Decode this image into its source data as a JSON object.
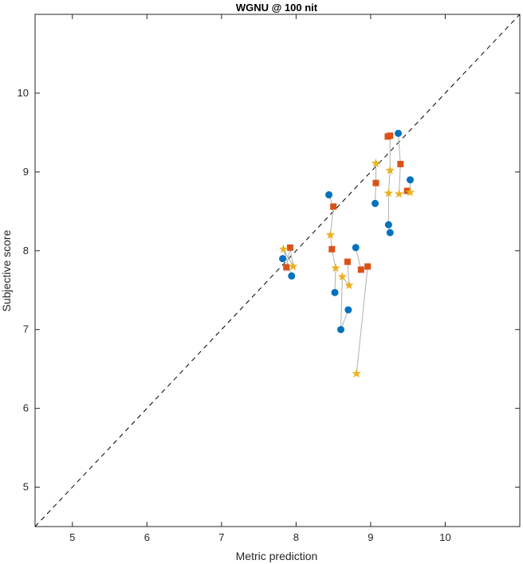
{
  "chart_data": {
    "type": "scatter",
    "title": "WGNU @ 100 nit",
    "xlabel": "Metric prediction",
    "ylabel": "Subjective score",
    "xlim": [
      4.5,
      11
    ],
    "ylim": [
      4.5,
      11
    ],
    "xticks": [
      5,
      6,
      7,
      8,
      9,
      10
    ],
    "yticks": [
      5,
      6,
      7,
      8,
      9,
      10
    ],
    "grid": false,
    "box": true,
    "reference_line": {
      "style": "dashed",
      "color": "#000000",
      "from": [
        4.5,
        4.5
      ],
      "to": [
        11,
        11
      ]
    },
    "marker_series": [
      {
        "marker": "circle",
        "color": "#0072BD"
      },
      {
        "marker": "square",
        "color": "#D95319"
      },
      {
        "marker": "star",
        "color": "#EDB120"
      }
    ],
    "connector_color": "#B0B0B0",
    "groups": [
      [
        [
          7.82,
          7.9,
          0
        ],
        [
          7.87,
          7.79,
          1
        ],
        [
          7.92,
          8.04,
          1
        ],
        [
          7.96,
          7.8,
          2
        ],
        [
          7.83,
          8.02,
          2
        ],
        [
          7.94,
          7.68,
          0
        ]
      ],
      [
        [
          8.44,
          8.71,
          0
        ],
        [
          8.5,
          8.56,
          1
        ],
        [
          8.46,
          8.2,
          2
        ],
        [
          8.48,
          8.02,
          1
        ],
        [
          8.53,
          7.78,
          2
        ],
        [
          8.52,
          7.47,
          0
        ]
      ],
      [
        [
          8.8,
          8.04,
          0
        ],
        [
          8.87,
          7.76,
          1
        ],
        [
          8.96,
          7.8,
          1
        ],
        [
          8.81,
          6.44,
          2
        ]
      ],
      [
        [
          8.69,
          7.86,
          1
        ],
        [
          8.71,
          7.56,
          2
        ],
        [
          8.62,
          7.67,
          2
        ],
        [
          8.6,
          7.0,
          0
        ],
        [
          8.7,
          7.25,
          0
        ]
      ],
      [
        [
          9.07,
          9.11,
          2
        ],
        [
          9.07,
          8.86,
          1
        ],
        [
          9.06,
          8.6,
          0
        ]
      ],
      [
        [
          9.23,
          9.45,
          1
        ],
        [
          9.26,
          9.46,
          1
        ],
        [
          9.26,
          9.02,
          2
        ],
        [
          9.24,
          8.73,
          2
        ],
        [
          9.24,
          8.33,
          0
        ],
        [
          9.26,
          8.23,
          0
        ]
      ],
      [
        [
          9.37,
          9.49,
          0
        ],
        [
          9.4,
          9.1,
          1
        ],
        [
          9.38,
          8.72,
          2
        ],
        [
          9.49,
          8.76,
          1
        ],
        [
          9.53,
          8.74,
          2
        ],
        [
          9.53,
          8.9,
          0
        ]
      ]
    ]
  }
}
